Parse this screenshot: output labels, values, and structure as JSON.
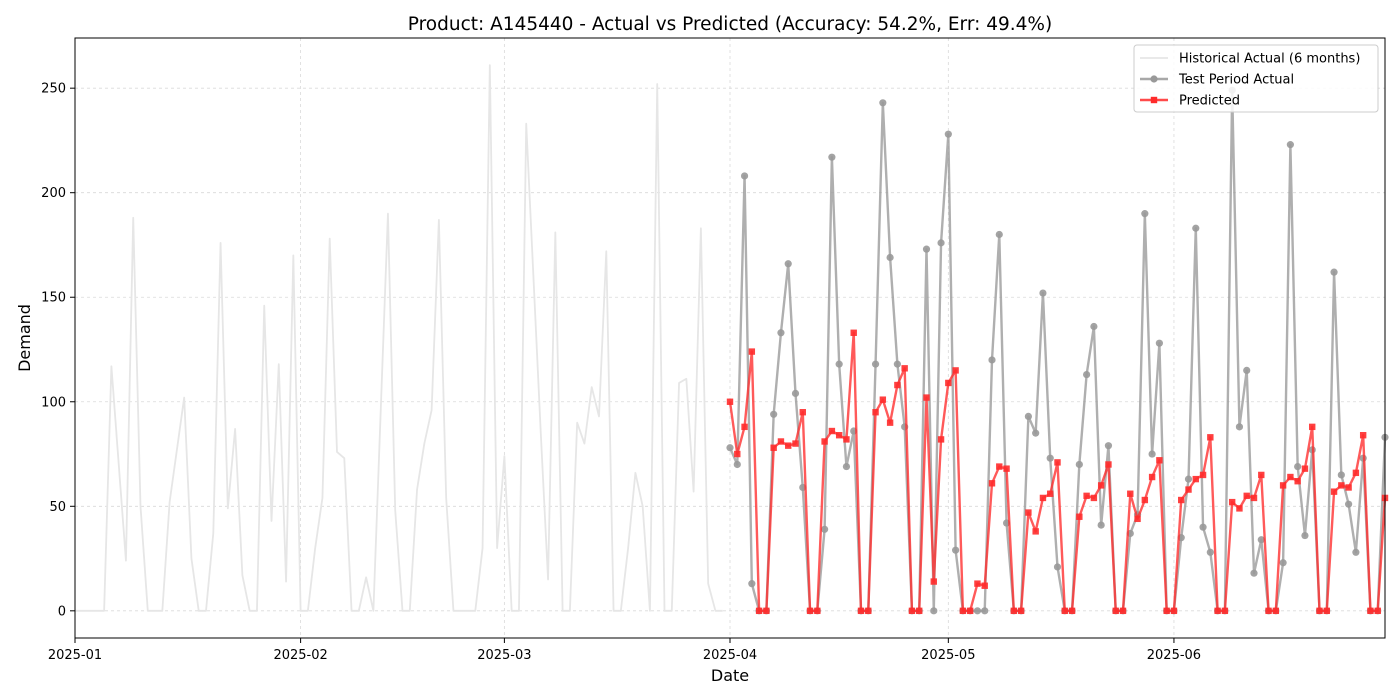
{
  "chart_data": {
    "type": "line",
    "title": "Product: A145440 - Actual vs Predicted (Accuracy: 54.2%, Err: 49.4%)",
    "xlabel": "Date",
    "ylabel": "Demand",
    "xlim": [
      "2025-01-01",
      "2025-06-30"
    ],
    "ylim": [
      -13,
      274
    ],
    "xticks": [
      "2025-01",
      "2025-02",
      "2025-03",
      "2025-04",
      "2025-05",
      "2025-06"
    ],
    "yticks": [
      0,
      50,
      100,
      150,
      200,
      250
    ],
    "grid": true,
    "legend_position": "upper right",
    "series": [
      {
        "name": "Historical Actual (6 months)",
        "color": "#e6e6e6",
        "marker": "none",
        "x": [
          "2025-01-01",
          "2025-01-05",
          "2025-01-06",
          "2025-01-08",
          "2025-01-09",
          "2025-01-10",
          "2025-01-11",
          "2025-01-12",
          "2025-01-13",
          "2025-01-14",
          "2025-01-16",
          "2025-01-17",
          "2025-01-18",
          "2025-01-19",
          "2025-01-20",
          "2025-01-21",
          "2025-01-22",
          "2025-01-23",
          "2025-01-24",
          "2025-01-25",
          "2025-01-26",
          "2025-01-27",
          "2025-01-28",
          "2025-01-29",
          "2025-01-30",
          "2025-01-31",
          "2025-02-01",
          "2025-02-02",
          "2025-02-03",
          "2025-02-04",
          "2025-02-05",
          "2025-02-06",
          "2025-02-07",
          "2025-02-08",
          "2025-02-09",
          "2025-02-10",
          "2025-02-11",
          "2025-02-13",
          "2025-02-14",
          "2025-02-15",
          "2025-02-16",
          "2025-02-17",
          "2025-02-18",
          "2025-02-19",
          "2025-02-20",
          "2025-02-21",
          "2025-02-22",
          "2025-02-24",
          "2025-02-25",
          "2025-02-26",
          "2025-02-27",
          "2025-02-28",
          "2025-03-01",
          "2025-03-02",
          "2025-03-03",
          "2025-03-04",
          "2025-03-06",
          "2025-03-07",
          "2025-03-08",
          "2025-03-09",
          "2025-03-10",
          "2025-03-11",
          "2025-03-12",
          "2025-03-13",
          "2025-03-14",
          "2025-03-15",
          "2025-03-16",
          "2025-03-17",
          "2025-03-18",
          "2025-03-19",
          "2025-03-20",
          "2025-03-21",
          "2025-03-22",
          "2025-03-23",
          "2025-03-24",
          "2025-03-25",
          "2025-03-26",
          "2025-03-27",
          "2025-03-28",
          "2025-03-29",
          "2025-03-30",
          "2025-03-31"
        ],
        "y": [
          0,
          0,
          117,
          24,
          188,
          50,
          0,
          0,
          0,
          52,
          102,
          25,
          0,
          0,
          37,
          176,
          49,
          87,
          17,
          0,
          0,
          146,
          43,
          118,
          14,
          170,
          0,
          0,
          30,
          54,
          178,
          76,
          73,
          0,
          0,
          16,
          0,
          190,
          48,
          0,
          0,
          58,
          80,
          96,
          187,
          54,
          0,
          0,
          0,
          30,
          261,
          30,
          74,
          0,
          0,
          233,
          85,
          15,
          181,
          0,
          0,
          90,
          80,
          107,
          93,
          172,
          0,
          0,
          30,
          66,
          50,
          0,
          252,
          0,
          0,
          109,
          111,
          57,
          183,
          13,
          0,
          0
        ]
      },
      {
        "name": "Test Period Actual",
        "color": "#999999",
        "marker": "circle",
        "x": [
          "2025-04-01",
          "2025-04-02",
          "2025-04-03",
          "2025-04-04",
          "2025-04-05",
          "2025-04-06",
          "2025-04-07",
          "2025-04-08",
          "2025-04-09",
          "2025-04-10",
          "2025-04-11",
          "2025-04-12",
          "2025-04-13",
          "2025-04-14",
          "2025-04-15",
          "2025-04-16",
          "2025-04-17",
          "2025-04-18",
          "2025-04-19",
          "2025-04-20",
          "2025-04-21",
          "2025-04-22",
          "2025-04-23",
          "2025-04-24",
          "2025-04-25",
          "2025-04-26",
          "2025-04-27",
          "2025-04-28",
          "2025-04-29",
          "2025-04-30",
          "2025-05-01",
          "2025-05-02",
          "2025-05-03",
          "2025-05-04",
          "2025-05-05",
          "2025-05-06",
          "2025-05-07",
          "2025-05-08",
          "2025-05-09",
          "2025-05-10",
          "2025-05-11",
          "2025-05-12",
          "2025-05-13",
          "2025-05-14",
          "2025-05-15",
          "2025-05-16",
          "2025-05-17",
          "2025-05-18",
          "2025-05-19",
          "2025-05-20",
          "2025-05-21",
          "2025-05-22",
          "2025-05-23",
          "2025-05-24",
          "2025-05-25",
          "2025-05-26",
          "2025-05-27",
          "2025-05-28",
          "2025-05-29",
          "2025-05-30",
          "2025-05-31",
          "2025-06-01",
          "2025-06-02",
          "2025-06-03",
          "2025-06-04",
          "2025-06-05",
          "2025-06-06",
          "2025-06-07",
          "2025-06-08",
          "2025-06-09",
          "2025-06-10",
          "2025-06-11",
          "2025-06-12",
          "2025-06-13",
          "2025-06-14",
          "2025-06-15",
          "2025-06-16",
          "2025-06-17",
          "2025-06-18",
          "2025-06-19",
          "2025-06-20",
          "2025-06-21",
          "2025-06-22",
          "2025-06-23",
          "2025-06-24",
          "2025-06-25",
          "2025-06-26",
          "2025-06-27",
          "2025-06-28",
          "2025-06-29",
          "2025-06-30"
        ],
        "y": [
          78,
          70,
          208,
          13,
          0,
          0,
          94,
          133,
          166,
          104,
          59,
          0,
          0,
          39,
          217,
          118,
          69,
          86,
          0,
          0,
          118,
          243,
          169,
          118,
          88,
          0,
          0,
          173,
          0,
          176,
          228,
          29,
          0,
          0,
          0,
          0,
          120,
          180,
          42,
          0,
          0,
          93,
          85,
          152,
          73,
          21,
          0,
          0,
          70,
          113,
          136,
          41,
          79,
          0,
          0,
          37,
          46,
          190,
          75,
          128,
          0,
          0,
          35,
          63,
          183,
          40,
          28,
          0,
          0,
          249,
          88,
          115,
          18,
          34,
          0,
          0,
          23,
          223,
          69,
          36,
          77,
          0,
          0,
          162,
          65,
          51,
          28,
          73,
          0,
          0,
          83
        ]
      },
      {
        "name": "Predicted",
        "color": "#ff2b2b",
        "marker": "square",
        "x": [
          "2025-04-01",
          "2025-04-02",
          "2025-04-03",
          "2025-04-04",
          "2025-04-05",
          "2025-04-06",
          "2025-04-07",
          "2025-04-08",
          "2025-04-09",
          "2025-04-10",
          "2025-04-11",
          "2025-04-12",
          "2025-04-13",
          "2025-04-14",
          "2025-04-15",
          "2025-04-16",
          "2025-04-17",
          "2025-04-18",
          "2025-04-19",
          "2025-04-20",
          "2025-04-21",
          "2025-04-22",
          "2025-04-23",
          "2025-04-24",
          "2025-04-25",
          "2025-04-26",
          "2025-04-27",
          "2025-04-28",
          "2025-04-29",
          "2025-04-30",
          "2025-05-01",
          "2025-05-02",
          "2025-05-03",
          "2025-05-04",
          "2025-05-05",
          "2025-05-06",
          "2025-05-07",
          "2025-05-08",
          "2025-05-09",
          "2025-05-10",
          "2025-05-11",
          "2025-05-12",
          "2025-05-13",
          "2025-05-14",
          "2025-05-15",
          "2025-05-16",
          "2025-05-17",
          "2025-05-18",
          "2025-05-19",
          "2025-05-20",
          "2025-05-21",
          "2025-05-22",
          "2025-05-23",
          "2025-05-24",
          "2025-05-25",
          "2025-05-26",
          "2025-05-27",
          "2025-05-28",
          "2025-05-29",
          "2025-05-30",
          "2025-05-31",
          "2025-06-01",
          "2025-06-02",
          "2025-06-03",
          "2025-06-04",
          "2025-06-05",
          "2025-06-06",
          "2025-06-07",
          "2025-06-08",
          "2025-06-09",
          "2025-06-10",
          "2025-06-11",
          "2025-06-12",
          "2025-06-13",
          "2025-06-14",
          "2025-06-15",
          "2025-06-16",
          "2025-06-17",
          "2025-06-18",
          "2025-06-19",
          "2025-06-20",
          "2025-06-21",
          "2025-06-22",
          "2025-06-23",
          "2025-06-24",
          "2025-06-25",
          "2025-06-26",
          "2025-06-27",
          "2025-06-28",
          "2025-06-29",
          "2025-06-30"
        ],
        "y": [
          100,
          75,
          88,
          124,
          0,
          0,
          78,
          81,
          79,
          80,
          95,
          0,
          0,
          81,
          86,
          84,
          82,
          133,
          0,
          0,
          95,
          101,
          90,
          108,
          116,
          0,
          0,
          102,
          14,
          82,
          109,
          115,
          0,
          0,
          13,
          12,
          61,
          69,
          68,
          0,
          0,
          47,
          38,
          54,
          56,
          71,
          0,
          0,
          45,
          55,
          54,
          60,
          70,
          0,
          0,
          56,
          44,
          53,
          64,
          72,
          0,
          0,
          53,
          58,
          63,
          65,
          83,
          0,
          0,
          52,
          49,
          55,
          54,
          65,
          0,
          0,
          60,
          64,
          62,
          68,
          88,
          0,
          0,
          57,
          60,
          59,
          66,
          84,
          0,
          0,
          54
        ]
      }
    ]
  }
}
